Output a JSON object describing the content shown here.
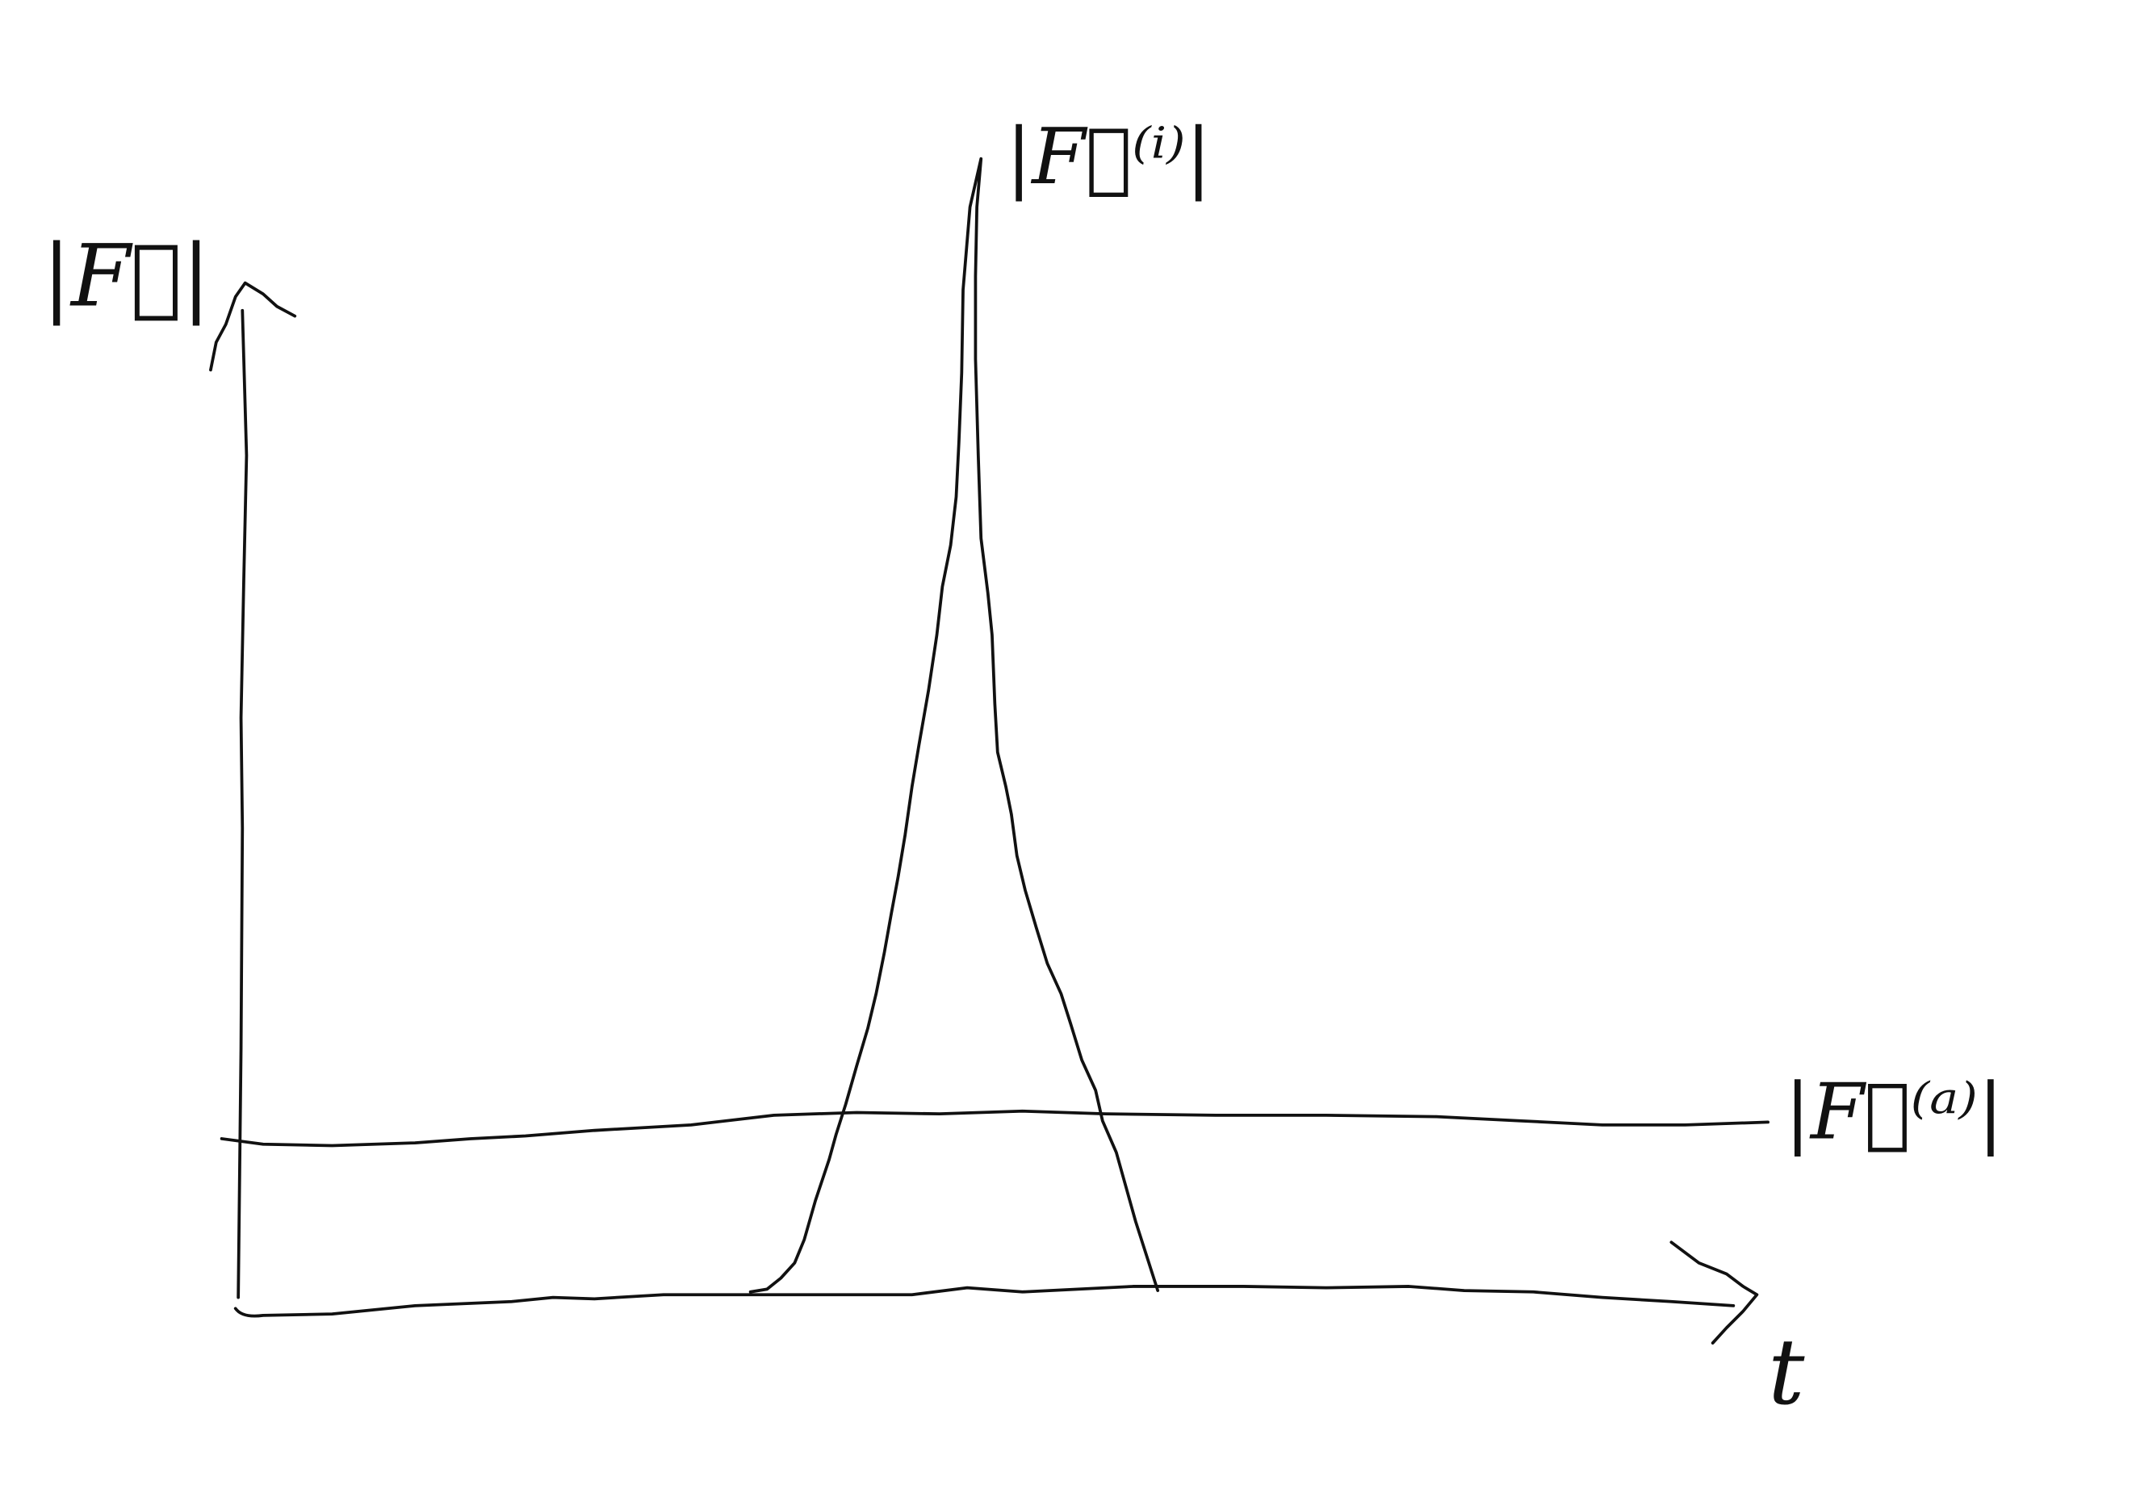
{
  "axes": {
    "y_label": "|F⃗|",
    "x_label": "t"
  },
  "curves": [
    {
      "label": "|F⃗⁽ⁱ⁾|"
    },
    {
      "label": "|F⃗⁽ᵃ⁾|"
    }
  ]
}
